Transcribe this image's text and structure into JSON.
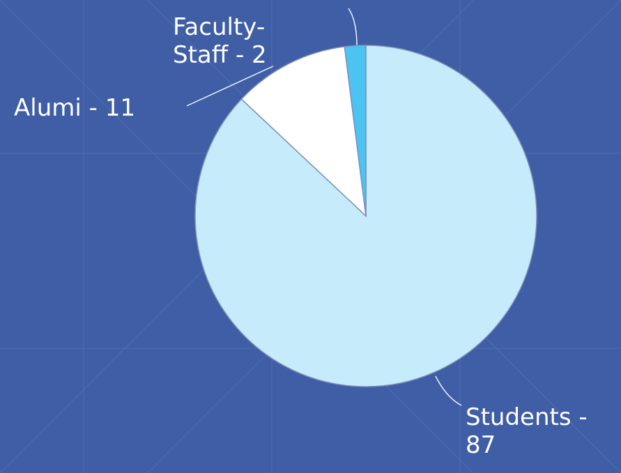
{
  "chart_data": {
    "type": "pie",
    "values": [
      87,
      11,
      2
    ],
    "value_labels": [
      [
        "Students -",
        "87"
      ],
      [
        "Alumi - 11"
      ],
      [
        "Faculty-",
        "Staff - 2"
      ]
    ],
    "colors": [
      "#c6ecfc",
      "#ffffff",
      "#4cc4f2"
    ]
  }
}
